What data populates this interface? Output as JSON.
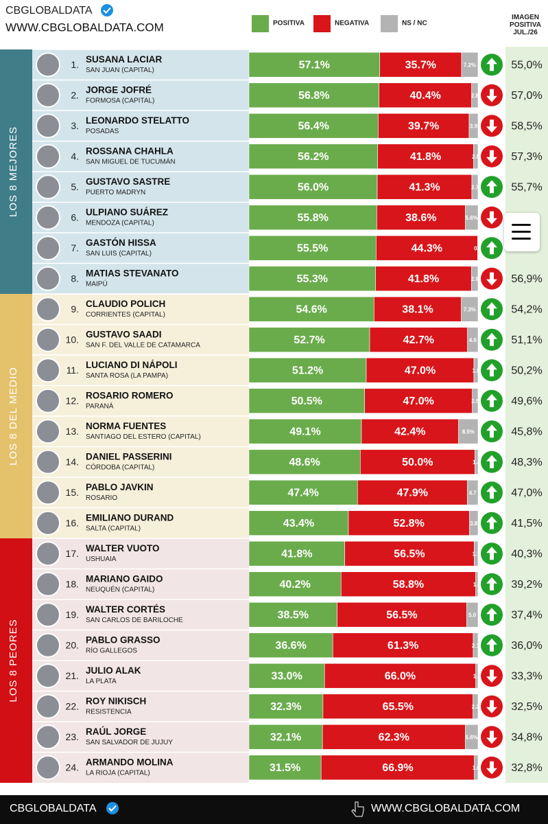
{
  "chart_data": {
    "type": "bar",
    "orientation": "horizontal",
    "stacked": true,
    "brand": "CBGLOBALDATA",
    "url": "WWW.CBGLOBALDATA.COM",
    "footer_brand": "CBGLOBALDATA",
    "footer_url": "WWW.CBGLOBALDATA.COM",
    "xlim": [
      0,
      100
    ],
    "groups": [
      {
        "label": "LOS 8 MEJORES",
        "color": "#3f7d88",
        "background": "#d3e5eb"
      },
      {
        "label": "LOS 8 DEL MEDIO",
        "color": "#e4c16b",
        "background": "#f6f0da"
      },
      {
        "label": "LOS 8 PEORES",
        "color": "#d10f14",
        "background": "#f1e5e5"
      }
    ],
    "ranks": [
      "1.",
      "2.",
      "3.",
      "4.",
      "5.",
      "6.",
      "7.",
      "8.",
      "9.",
      "10.",
      "11.",
      "12.",
      "13.",
      "14.",
      "15.",
      "16.",
      "17.",
      "18.",
      "19.",
      "20.",
      "21.",
      "22.",
      "23.",
      "24."
    ],
    "categories": [
      "SUSANA LACIAR",
      "JORGE JOFRÉ",
      "LEONARDO STELATTO",
      "ROSSANA CHAHLA",
      "GUSTAVO SASTRE",
      "ULPIANO SUÁREZ",
      "GASTÓN HISSA",
      "MATIAS STEVANATO",
      "CLAUDIO POLICH",
      "GUSTAVO SAADI",
      "LUCIANO DI NÁPOLI",
      "ROSARIO ROMERO",
      "NORMA FUENTES",
      "DANIEL PASSERINI",
      "PABLO JAVKIN",
      "EMILIANO DURAND",
      "WALTER VUOTO",
      "MARIANO GAIDO",
      "WALTER CORTÉS",
      "PABLO GRASSO",
      "JULIO ALAK",
      "ROY NIKISCH",
      "RAÚL JORGE",
      "ARMANDO MOLINA"
    ],
    "locations": [
      "SAN JUAN (CAPITAL)",
      "FORMOSA (CAPITAL)",
      "POSADAS",
      "SAN MIGUEL DE TUCUMÁN",
      "PUERTO MADRYN",
      "MENDOZA (CAPITAL)",
      "SAN LUIS (CAPITAL)",
      "MAIPÚ",
      "CORRIENTES (CAPITAL)",
      "SAN F. DEL VALLE DE CATAMARCA",
      "SANTA ROSA (LA PAMPA)",
      "PARANÁ",
      "SANTIAGO DEL ESTERO (CAPITAL)",
      "CÓRDOBA (CAPITAL)",
      "ROSARIO",
      "SALTA (CAPITAL)",
      "USHUAIA",
      "NEUQUÉN (CAPITAL)",
      "SAN CARLOS DE BARILOCHE",
      "RÍO GALLEGOS",
      "LA PLATA",
      "RESISTENCIA",
      "SAN SALVADOR DE JUJUY",
      "LA RIOJA (CAPITAL)"
    ],
    "series": [
      {
        "name": "POSITIVA",
        "color": "#6aac4c",
        "values": [
          57.1,
          56.8,
          56.4,
          56.2,
          56.0,
          55.8,
          55.5,
          55.3,
          54.6,
          52.7,
          51.2,
          50.5,
          49.1,
          48.6,
          47.4,
          43.4,
          41.8,
          40.2,
          38.5,
          36.6,
          33.0,
          32.3,
          32.1,
          31.5
        ],
        "value_labels": [
          "57.1%",
          "56.8%",
          "56.4%",
          "56.2%",
          "56.0%",
          "55.8%",
          "55.5%",
          "55.3%",
          "54.6%",
          "52.7%",
          "51.2%",
          "50.5%",
          "49.1%",
          "48.6%",
          "47.4%",
          "43.4%",
          "41.8%",
          "40.2%",
          "38.5%",
          "36.6%",
          "33.0%",
          "32.3%",
          "32.1%",
          "31.5%"
        ]
      },
      {
        "name": "NEGATIVA",
        "color": "#d8151a",
        "values": [
          35.7,
          40.4,
          39.7,
          41.8,
          41.3,
          38.6,
          44.3,
          41.8,
          38.1,
          42.7,
          47.0,
          47.0,
          42.4,
          50.0,
          47.9,
          52.8,
          56.5,
          58.8,
          56.5,
          61.3,
          66.0,
          65.5,
          62.3,
          66.9
        ],
        "value_labels": [
          "35.7%",
          "40.4%",
          "39.7%",
          "41.8%",
          "41.3%",
          "38.6%",
          "44.3%",
          "41.8%",
          "38.1%",
          "42.7%",
          "47.0%",
          "47.0%",
          "42.4%",
          "50.0%",
          "47.9%",
          "52.8%",
          "56.5%",
          "58.8%",
          "56.5%",
          "61.3%",
          "66.0%",
          "65.5%",
          "62.3%",
          "66.9%"
        ]
      },
      {
        "name": "NS / NC",
        "color": "#b3b3b3",
        "values": [
          7.2,
          2.8,
          3.9,
          2.0,
          2.7,
          5.6,
          0.2,
          2.9,
          7.3,
          4.6,
          1.8,
          2.5,
          8.5,
          1.4,
          4.7,
          3.8,
          1.7,
          1.0,
          5.0,
          2.1,
          1.0,
          2.2,
          5.6,
          1.6
        ],
        "value_labels": [
          "7.2%",
          "2.8",
          "3.9",
          "2.0",
          "2.7",
          "5.6%",
          "0.2",
          "2.9",
          "7.3%",
          "4.6",
          "1.8",
          "2.5",
          "8.5%",
          "1.4",
          "4.7",
          "3.8",
          "1.7",
          "1.0",
          "5.0",
          "2.1",
          "1.0",
          "2.2",
          "5.6%",
          "1.6"
        ]
      }
    ],
    "trend": [
      "up",
      "down",
      "down",
      "down",
      "up",
      "down",
      "up",
      "down",
      "up",
      "up",
      "up",
      "up",
      "up",
      "up",
      "up",
      "up",
      "up",
      "up",
      "up",
      "up",
      "down",
      "down",
      "down",
      "down"
    ],
    "trend_colors": {
      "up": "#21a02a",
      "down": "#d8151a"
    },
    "previous": {
      "name": "IMAGEN POSITIVA JUL./26",
      "background": "#e3f0db",
      "values": [
        55.0,
        57.0,
        58.5,
        57.3,
        55.7,
        null,
        null,
        56.9,
        54.2,
        51.1,
        50.2,
        49.6,
        45.8,
        48.3,
        47.0,
        41.5,
        40.3,
        39.2,
        37.4,
        36.0,
        33.3,
        32.5,
        34.8,
        32.8
      ],
      "value_labels": [
        "55,0%",
        "57,0%",
        "58,5%",
        "57,3%",
        "55,7%",
        null,
        null,
        "56,9%",
        "54,2%",
        "51,1%",
        "50,2%",
        "49,6%",
        "45,8%",
        "48,3%",
        "47,0%",
        "41,5%",
        "40,3%",
        "39,2%",
        "37,4%",
        "36,0%",
        "33,3%",
        "32,5%",
        "34,8%",
        "32,8%"
      ]
    }
  }
}
